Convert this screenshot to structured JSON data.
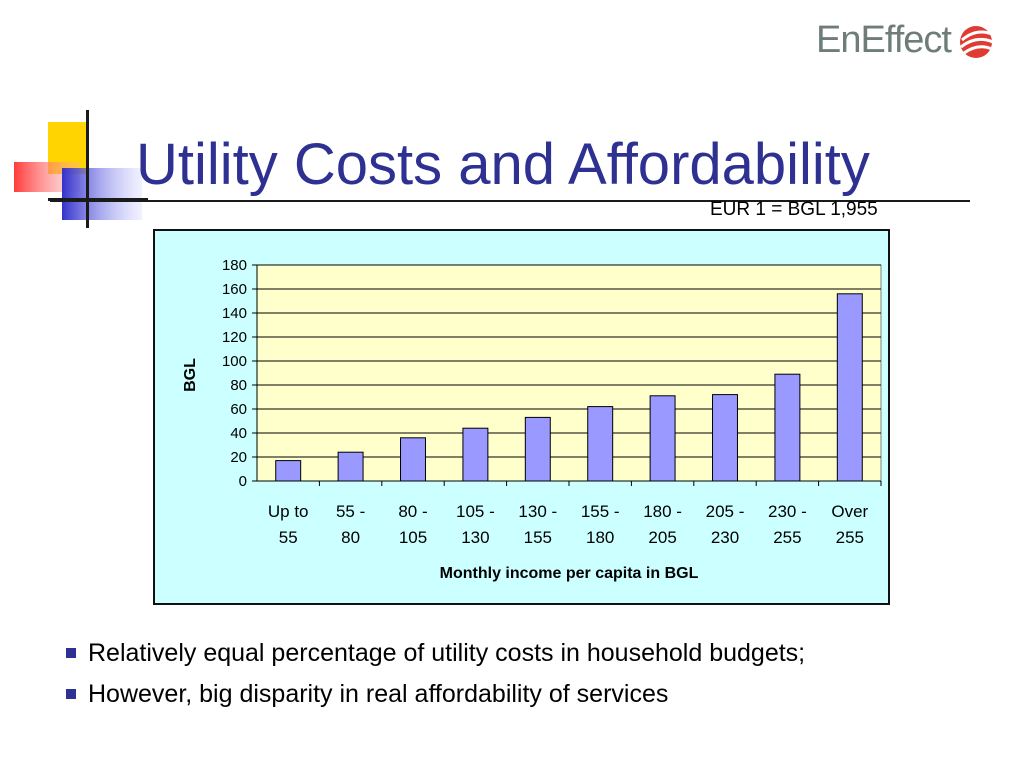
{
  "logo": {
    "text": "EnEffect"
  },
  "slide": {
    "title": "Utility Costs and Affordability",
    "exchange_note": "EUR 1 = BGL 1,955"
  },
  "chart_data": {
    "type": "bar",
    "categories": [
      [
        "Up to",
        "55"
      ],
      [
        "55 -",
        "80"
      ],
      [
        "80 -",
        "105"
      ],
      [
        "105 -",
        "130"
      ],
      [
        "130 -",
        "155"
      ],
      [
        "155 -",
        "180"
      ],
      [
        "180 -",
        "205"
      ],
      [
        "205 -",
        "230"
      ],
      [
        "230 -",
        "255"
      ],
      [
        "Over",
        "255"
      ]
    ],
    "values": [
      17,
      24,
      36,
      44,
      53,
      62,
      71,
      72,
      89,
      156
    ],
    "ylabel": "BGL",
    "xlabel": "Monthly income per capita in BGL",
    "ylim": [
      0,
      180
    ],
    "yticks": [
      0,
      20,
      40,
      60,
      80,
      100,
      120,
      140,
      160,
      180
    ],
    "grid": true,
    "colors": {
      "frame_bg": "#ccffff",
      "plot_bg": "#ffffcc",
      "bar_fill": "#9999ff",
      "bar_stroke": "#000000"
    }
  },
  "bullets": [
    "Relatively equal  percentage of utility costs in household budgets;",
    "However, big disparity in real affordability of services"
  ]
}
